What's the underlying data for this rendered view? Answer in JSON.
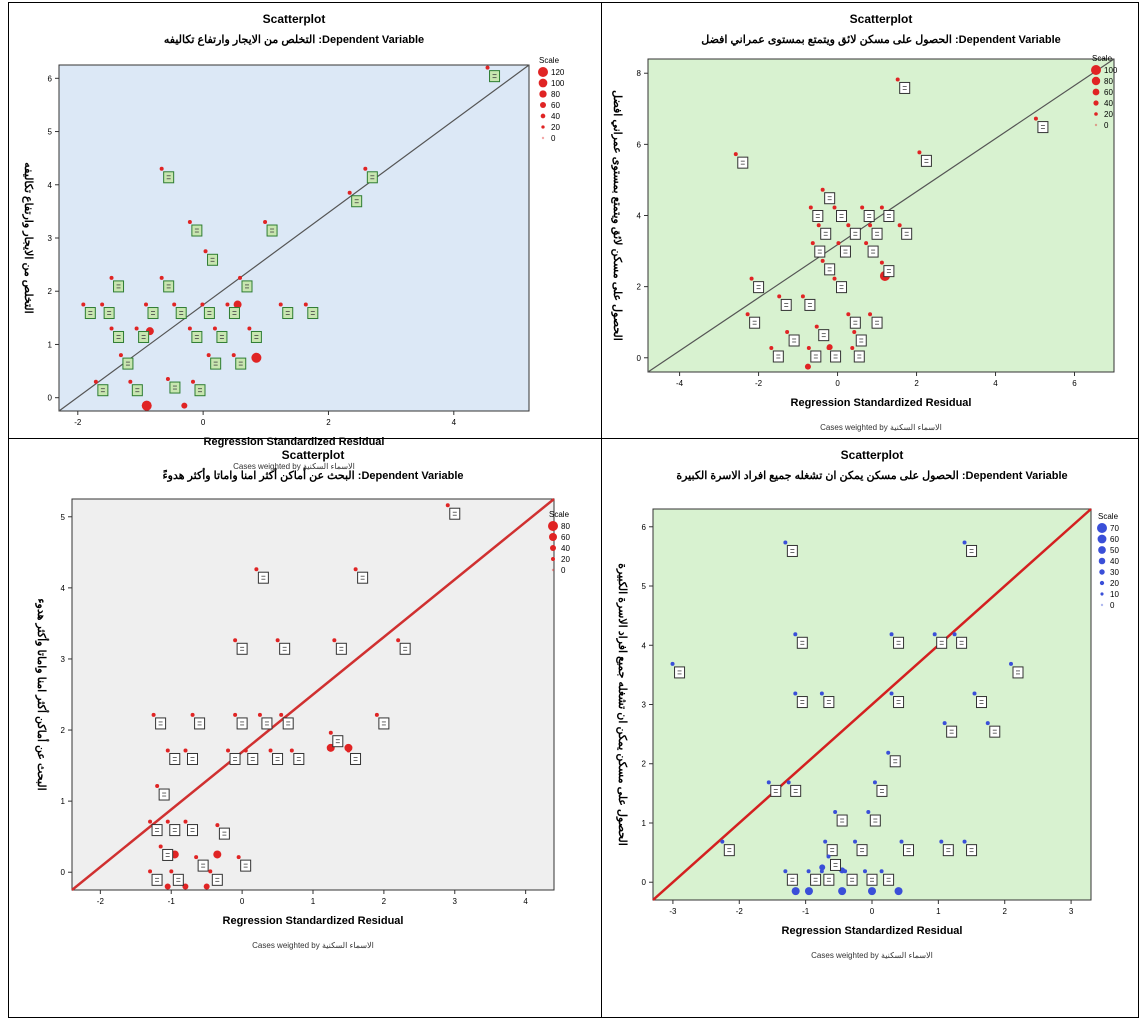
{
  "chart_data": [
    {
      "type": "scatter",
      "title": "Scatterplot",
      "subtitle": "التخلص من الايجار وارتفاع تكاليفه :Dependent Variable",
      "xlabel": "Regression Standardized Residual",
      "ylabel": "التخلص من الايجار وارتفاع تكاليفه",
      "note": "Cases weighted by الاسماء السكنية",
      "xlim": [
        -2.3,
        5.2
      ],
      "ylim": [
        -0.25,
        6.25
      ],
      "xticks": [
        -2,
        0,
        2,
        4
      ],
      "yticks": [
        0,
        1,
        2,
        3,
        4,
        5,
        6
      ],
      "background": "#dce8f6",
      "marker_color": "#e02424",
      "box_color": "#2e7d32",
      "box_fill": "#c8e6b0",
      "line_color": "#555555",
      "legend_title": "Scale",
      "legend": [
        "120",
        "100",
        "80",
        "60",
        "40",
        "20",
        "0"
      ],
      "points": [
        {
          "x": 4.65,
          "y": 6.05
        },
        {
          "x": -0.55,
          "y": 4.15
        },
        {
          "x": 2.7,
          "y": 4.15
        },
        {
          "x": 2.45,
          "y": 3.7
        },
        {
          "x": -0.1,
          "y": 3.15
        },
        {
          "x": 1.1,
          "y": 3.15
        },
        {
          "x": 0.15,
          "y": 2.6
        },
        {
          "x": -1.35,
          "y": 2.1
        },
        {
          "x": -0.55,
          "y": 2.1
        },
        {
          "x": 0.7,
          "y": 2.1
        },
        {
          "x": -1.8,
          "y": 1.6
        },
        {
          "x": -1.5,
          "y": 1.6
        },
        {
          "x": -0.8,
          "y": 1.6
        },
        {
          "x": -0.35,
          "y": 1.6
        },
        {
          "x": 0.1,
          "y": 1.6
        },
        {
          "x": 0.5,
          "y": 1.6
        },
        {
          "x": 1.35,
          "y": 1.6
        },
        {
          "x": 1.75,
          "y": 1.6
        },
        {
          "x": -1.35,
          "y": 1.15
        },
        {
          "x": -0.95,
          "y": 1.15
        },
        {
          "x": -0.1,
          "y": 1.15
        },
        {
          "x": 0.3,
          "y": 1.15
        },
        {
          "x": 0.85,
          "y": 1.15
        },
        {
          "x": -1.2,
          "y": 0.65
        },
        {
          "x": 0.2,
          "y": 0.65
        },
        {
          "x": 0.6,
          "y": 0.65
        },
        {
          "x": -1.6,
          "y": 0.15
        },
        {
          "x": -1.05,
          "y": 0.15
        },
        {
          "x": -0.45,
          "y": 0.2
        },
        {
          "x": -0.05,
          "y": 0.15
        }
      ],
      "dots": [
        {
          "x": -0.9,
          "y": -0.15,
          "s": 5
        },
        {
          "x": -0.3,
          "y": -0.15,
          "s": 3
        },
        {
          "x": 0.85,
          "y": 0.75,
          "s": 5
        },
        {
          "x": -0.85,
          "y": 1.25,
          "s": 4
        },
        {
          "x": 0.55,
          "y": 1.75,
          "s": 4
        }
      ]
    },
    {
      "type": "scatter",
      "title": "Scatterplot",
      "subtitle": "الحصول على مسكن لائق ويتمتع بمستوى عمراني افضل :Dependent Variable",
      "xlabel": "Regression Standardized Residual",
      "ylabel": "الحصول على مسكن لائق ويتمتع بمستوى عمراني افضل",
      "note": "Cases weighted by الاسماء السكنية",
      "xlim": [
        -4.8,
        7.0
      ],
      "ylim": [
        -0.4,
        8.4
      ],
      "xticks": [
        -4,
        -2,
        0,
        2,
        4,
        6
      ],
      "yticks": [
        0,
        2,
        4,
        6,
        8
      ],
      "background": "#d8f2d0",
      "marker_color": "#e02424",
      "box_color": "#333333",
      "box_fill": "#ffffff",
      "line_color": "#555555",
      "legend_title": "Scale",
      "legend": [
        "100",
        "80",
        "60",
        "40",
        "20",
        "0"
      ],
      "points": [
        {
          "x": 1.7,
          "y": 7.6
        },
        {
          "x": 5.2,
          "y": 6.5
        },
        {
          "x": -2.4,
          "y": 5.5
        },
        {
          "x": 2.25,
          "y": 5.55
        },
        {
          "x": -0.2,
          "y": 4.5
        },
        {
          "x": -0.5,
          "y": 4.0
        },
        {
          "x": 0.1,
          "y": 4.0
        },
        {
          "x": 0.8,
          "y": 4.0
        },
        {
          "x": 1.3,
          "y": 4.0
        },
        {
          "x": -0.3,
          "y": 3.5
        },
        {
          "x": 0.45,
          "y": 3.5
        },
        {
          "x": 1.0,
          "y": 3.5
        },
        {
          "x": 1.75,
          "y": 3.5
        },
        {
          "x": -0.45,
          "y": 3.0
        },
        {
          "x": 0.2,
          "y": 3.0
        },
        {
          "x": 0.9,
          "y": 3.0
        },
        {
          "x": -0.2,
          "y": 2.5
        },
        {
          "x": 1.3,
          "y": 2.45
        },
        {
          "x": -2.0,
          "y": 2.0
        },
        {
          "x": 0.1,
          "y": 2.0
        },
        {
          "x": -1.3,
          "y": 1.5
        },
        {
          "x": -0.7,
          "y": 1.5
        },
        {
          "x": -2.1,
          "y": 1.0
        },
        {
          "x": 0.45,
          "y": 1.0
        },
        {
          "x": 1.0,
          "y": 1.0
        },
        {
          "x": -0.35,
          "y": 0.65
        },
        {
          "x": -1.1,
          "y": 0.5
        },
        {
          "x": 0.6,
          "y": 0.5
        },
        {
          "x": -1.5,
          "y": 0.05
        },
        {
          "x": -0.55,
          "y": 0.05
        },
        {
          "x": -0.05,
          "y": 0.05
        },
        {
          "x": 0.55,
          "y": 0.05
        }
      ],
      "dots": [
        {
          "x": 1.2,
          "y": 2.3,
          "s": 5
        },
        {
          "x": -0.75,
          "y": -0.25,
          "s": 3
        },
        {
          "x": -0.2,
          "y": 0.3,
          "s": 3
        }
      ]
    },
    {
      "type": "scatter",
      "title": "Scatterplot",
      "subtitle": "البحث عن أماكن أكثر امنا واماتا وأكثر هدوءً :Dependent Variable",
      "xlabel": "Regression Standardized Residual",
      "ylabel": "البحث عن أماكن أكثر امنا واماتا وأكثر هدوء",
      "note": "Cases weighted by الاسماء السكنية",
      "xlim": [
        -2.4,
        4.4
      ],
      "ylim": [
        -0.25,
        5.25
      ],
      "xticks": [
        -2,
        -1,
        0,
        1,
        2,
        3,
        4
      ],
      "yticks": [
        0,
        1,
        2,
        3,
        4,
        5
      ],
      "background": "#efefef",
      "marker_color": "#e02424",
      "box_color": "#333333",
      "box_fill": "#ffffff",
      "line_color": "#d03030",
      "legend_title": "Scale",
      "legend": [
        "80",
        "60",
        "40",
        "20",
        "0"
      ],
      "points": [
        {
          "x": 3.0,
          "y": 5.05
        },
        {
          "x": 0.3,
          "y": 4.15
        },
        {
          "x": 1.7,
          "y": 4.15
        },
        {
          "x": 0.0,
          "y": 3.15
        },
        {
          "x": 0.6,
          "y": 3.15
        },
        {
          "x": 1.4,
          "y": 3.15
        },
        {
          "x": 2.3,
          "y": 3.15
        },
        {
          "x": -1.15,
          "y": 2.1
        },
        {
          "x": -0.6,
          "y": 2.1
        },
        {
          "x": 0.0,
          "y": 2.1
        },
        {
          "x": 0.35,
          "y": 2.1
        },
        {
          "x": 0.65,
          "y": 2.1
        },
        {
          "x": 2.0,
          "y": 2.1
        },
        {
          "x": -0.95,
          "y": 1.6
        },
        {
          "x": -0.7,
          "y": 1.6
        },
        {
          "x": -0.1,
          "y": 1.6
        },
        {
          "x": 0.15,
          "y": 1.6
        },
        {
          "x": 0.5,
          "y": 1.6
        },
        {
          "x": 0.8,
          "y": 1.6
        },
        {
          "x": 1.35,
          "y": 1.85
        },
        {
          "x": 1.6,
          "y": 1.6
        },
        {
          "x": -1.1,
          "y": 1.1
        },
        {
          "x": -1.2,
          "y": 0.6
        },
        {
          "x": -0.95,
          "y": 0.6
        },
        {
          "x": -0.7,
          "y": 0.6
        },
        {
          "x": -0.25,
          "y": 0.55
        },
        {
          "x": -1.05,
          "y": 0.25
        },
        {
          "x": -0.55,
          "y": 0.1
        },
        {
          "x": 0.05,
          "y": 0.1
        },
        {
          "x": -1.2,
          "y": -0.1
        },
        {
          "x": -0.9,
          "y": -0.1
        },
        {
          "x": -0.35,
          "y": -0.1
        }
      ],
      "dots": [
        {
          "x": 1.25,
          "y": 1.75,
          "s": 4
        },
        {
          "x": 1.5,
          "y": 1.75,
          "s": 4
        },
        {
          "x": -0.95,
          "y": 0.25,
          "s": 4
        },
        {
          "x": -0.35,
          "y": 0.25,
          "s": 4
        },
        {
          "x": -1.05,
          "y": -0.2,
          "s": 3
        },
        {
          "x": -0.8,
          "y": -0.2,
          "s": 3
        },
        {
          "x": -0.5,
          "y": -0.2,
          "s": 3
        }
      ]
    },
    {
      "type": "scatter",
      "title": "Scatterplot",
      "subtitle": "الحصول على مسكن يمكن ان تشغله جميع افراد الاسرة الكبيرة :Dependent Variable",
      "xlabel": "Regression Standardized Residual",
      "ylabel": "الحصول على مسكن يمكن ان تشغله جميع افراد الاسرة الكبيرة",
      "note": "Cases weighted by الاسماء السكنية",
      "xlim": [
        -3.3,
        3.3
      ],
      "ylim": [
        -0.3,
        6.3
      ],
      "xticks": [
        -3,
        -2,
        -1,
        0,
        1,
        2,
        3
      ],
      "yticks": [
        0,
        1,
        2,
        3,
        4,
        5,
        6
      ],
      "background": "#d8f2d0",
      "marker_color": "#3a4fd8",
      "box_color": "#333333",
      "box_fill": "#ffffff",
      "line_color": "#d42020",
      "legend_title": "Scale",
      "legend": [
        "70",
        "60",
        "50",
        "40",
        "30",
        "20",
        "10",
        "0"
      ],
      "points": [
        {
          "x": -1.2,
          "y": 5.6
        },
        {
          "x": 1.5,
          "y": 5.6
        },
        {
          "x": -1.05,
          "y": 4.05
        },
        {
          "x": 0.4,
          "y": 4.05
        },
        {
          "x": 1.05,
          "y": 4.05
        },
        {
          "x": 1.35,
          "y": 4.05
        },
        {
          "x": -2.9,
          "y": 3.55
        },
        {
          "x": 2.2,
          "y": 3.55
        },
        {
          "x": -1.05,
          "y": 3.05
        },
        {
          "x": -0.65,
          "y": 3.05
        },
        {
          "x": 0.4,
          "y": 3.05
        },
        {
          "x": 1.65,
          "y": 3.05
        },
        {
          "x": 1.2,
          "y": 2.55
        },
        {
          "x": 1.85,
          "y": 2.55
        },
        {
          "x": 0.35,
          "y": 2.05
        },
        {
          "x": -1.45,
          "y": 1.55
        },
        {
          "x": -1.15,
          "y": 1.55
        },
        {
          "x": 0.15,
          "y": 1.55
        },
        {
          "x": -0.45,
          "y": 1.05
        },
        {
          "x": 0.05,
          "y": 1.05
        },
        {
          "x": -2.15,
          "y": 0.55
        },
        {
          "x": -0.6,
          "y": 0.55
        },
        {
          "x": -0.15,
          "y": 0.55
        },
        {
          "x": 0.55,
          "y": 0.55
        },
        {
          "x": 1.15,
          "y": 0.55
        },
        {
          "x": 1.5,
          "y": 0.55
        },
        {
          "x": -0.55,
          "y": 0.3
        },
        {
          "x": -0.85,
          "y": 0.05
        },
        {
          "x": -0.65,
          "y": 0.05
        },
        {
          "x": -0.3,
          "y": 0.05
        },
        {
          "x": 0.0,
          "y": 0.05
        },
        {
          "x": 0.25,
          "y": 0.05
        },
        {
          "x": -1.2,
          "y": 0.05
        }
      ],
      "dots": [
        {
          "x": -1.15,
          "y": -0.15,
          "s": 4
        },
        {
          "x": -0.95,
          "y": -0.15,
          "s": 4
        },
        {
          "x": -0.45,
          "y": -0.15,
          "s": 4
        },
        {
          "x": 0.0,
          "y": -0.15,
          "s": 4
        },
        {
          "x": 0.4,
          "y": -0.15,
          "s": 4
        },
        {
          "x": -0.75,
          "y": 0.25,
          "s": 3
        },
        {
          "x": -0.45,
          "y": 0.2,
          "s": 3
        }
      ]
    }
  ]
}
